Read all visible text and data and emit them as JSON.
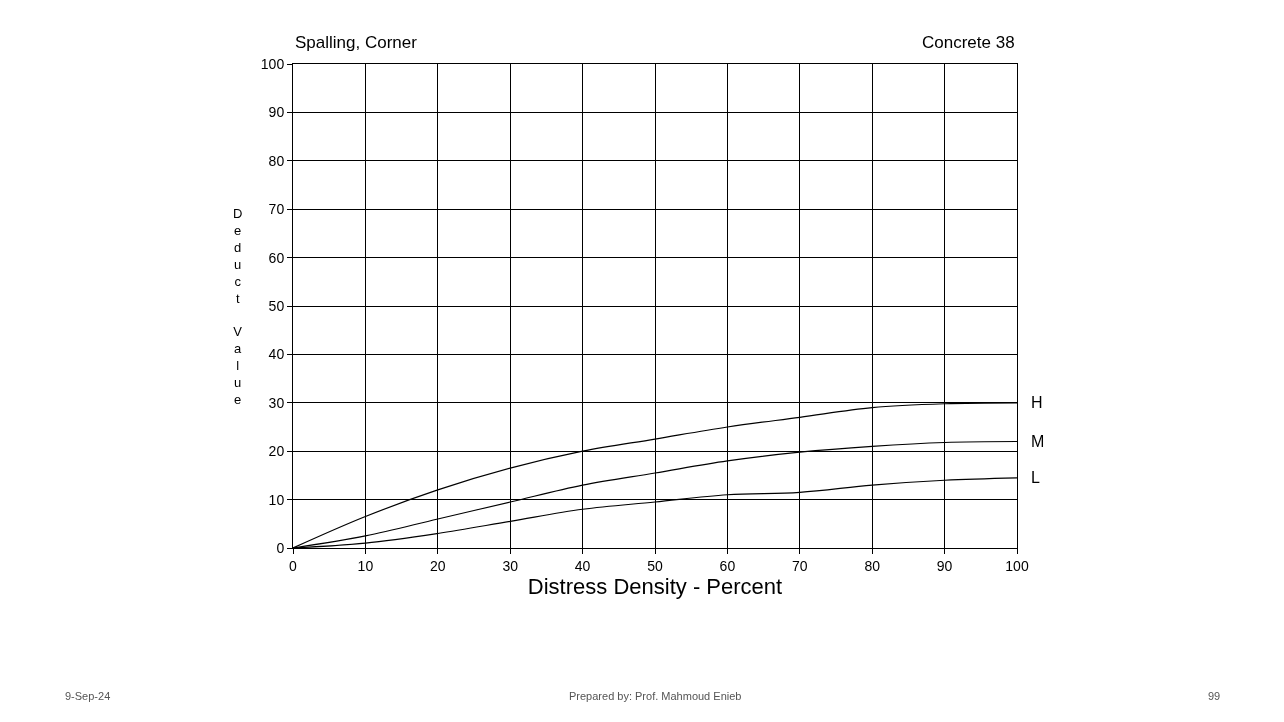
{
  "chart_data": {
    "type": "line",
    "title": "Spalling, Corner",
    "subtitle": "Concrete 38",
    "xlabel": "Distress Density - Percent",
    "ylabel": "Deduct Value",
    "x": [
      0,
      10,
      20,
      30,
      40,
      50,
      60,
      70,
      80,
      90,
      100
    ],
    "series": [
      {
        "name": "H",
        "color": "#000000",
        "values": [
          0,
          6.5,
          12,
          16.5,
          20,
          22.5,
          25,
          27,
          29,
          29.8,
          30
        ]
      },
      {
        "name": "M",
        "color": "#000000",
        "values": [
          0,
          2.5,
          6,
          9.5,
          13,
          15.5,
          18,
          19.8,
          21,
          21.8,
          22
        ]
      },
      {
        "name": "L",
        "color": "#000000",
        "values": [
          0,
          1,
          3,
          5.5,
          8,
          9.5,
          11,
          11.5,
          13,
          14,
          14.5
        ]
      }
    ],
    "xlim": [
      0,
      100
    ],
    "xticks": [
      0,
      10,
      20,
      30,
      40,
      50,
      60,
      70,
      80,
      90,
      100
    ],
    "ylim": [
      0,
      100
    ],
    "yticks": [
      0,
      10,
      20,
      30,
      40,
      50,
      60,
      70,
      80,
      90,
      100
    ],
    "grid": true,
    "legend": false,
    "marker": "none",
    "line_style": "solid",
    "annotations": [
      "9-Sep-24",
      "Prepared by: Prof. Mahmoud Enieb",
      "99"
    ]
  }
}
